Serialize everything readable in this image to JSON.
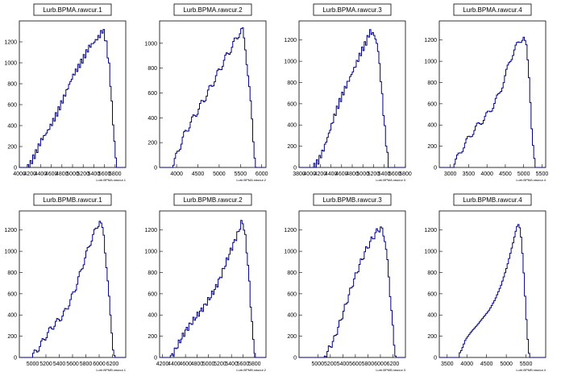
{
  "chart_data": [
    {
      "type": "histogram",
      "title": "Lurb.BPMA.rawcur.1",
      "xlabel": "Lurb.BPMA.rawcur.1",
      "xlim": [
        4000,
        6000
      ],
      "ylim": [
        0,
        1400
      ],
      "xticks": [
        4000,
        4200,
        4400,
        4600,
        4800,
        5000,
        5200,
        5400,
        5600,
        5800
      ],
      "yticks": [
        0,
        200,
        400,
        600,
        800,
        1000,
        1200
      ],
      "points": [
        [
          4000,
          0
        ],
        [
          4140,
          0
        ],
        [
          4200,
          40
        ],
        [
          4300,
          140
        ],
        [
          4400,
          260
        ],
        [
          4500,
          330
        ],
        [
          4600,
          420
        ],
        [
          4700,
          520
        ],
        [
          4800,
          640
        ],
        [
          4900,
          760
        ],
        [
          5000,
          880
        ],
        [
          5100,
          960
        ],
        [
          5200,
          1050
        ],
        [
          5300,
          1150
        ],
        [
          5400,
          1200
        ],
        [
          5500,
          1260
        ],
        [
          5560,
          1320
        ],
        [
          5620,
          1200
        ],
        [
          5680,
          950
        ],
        [
          5740,
          500
        ],
        [
          5780,
          200
        ],
        [
          5820,
          0
        ],
        [
          6000,
          0
        ]
      ]
    },
    {
      "type": "histogram",
      "title": "Lurb.BPMA.rawcur.2",
      "xlabel": "Lurb.BPMA.rawcur.2",
      "xlim": [
        3600,
        6100
      ],
      "ylim": [
        0,
        1180
      ],
      "xticks": [
        4000,
        4500,
        5000,
        5500,
        6000
      ],
      "yticks": [
        0,
        200,
        400,
        600,
        800,
        1000
      ],
      "points": [
        [
          3600,
          0
        ],
        [
          3880,
          0
        ],
        [
          3950,
          60
        ],
        [
          4050,
          160
        ],
        [
          4150,
          250
        ],
        [
          4300,
          350
        ],
        [
          4500,
          470
        ],
        [
          4700,
          590
        ],
        [
          4900,
          720
        ],
        [
          5100,
          860
        ],
        [
          5300,
          980
        ],
        [
          5450,
          1080
        ],
        [
          5530,
          1110
        ],
        [
          5600,
          960
        ],
        [
          5680,
          700
        ],
        [
          5750,
          400
        ],
        [
          5800,
          150
        ],
        [
          5860,
          0
        ],
        [
          6100,
          0
        ]
      ]
    },
    {
      "type": "histogram",
      "title": "Lurb.BPMA.rawcur.3",
      "xlabel": "Lurb.BPMA.rawcur.3",
      "xlim": [
        3800,
        5800
      ],
      "ylim": [
        0,
        1380
      ],
      "xticks": [
        3800,
        4000,
        4200,
        4400,
        4600,
        4800,
        5000,
        5200,
        5400,
        5600,
        5800
      ],
      "yticks": [
        0,
        200,
        400,
        600,
        800,
        1000,
        1200
      ],
      "points": [
        [
          3800,
          0
        ],
        [
          4060,
          0
        ],
        [
          4150,
          60
        ],
        [
          4250,
          170
        ],
        [
          4350,
          320
        ],
        [
          4450,
          480
        ],
        [
          4550,
          620
        ],
        [
          4650,
          740
        ],
        [
          4750,
          850
        ],
        [
          4850,
          960
        ],
        [
          4950,
          1080
        ],
        [
          5050,
          1180
        ],
        [
          5120,
          1280
        ],
        [
          5200,
          1250
        ],
        [
          5270,
          1130
        ],
        [
          5330,
          800
        ],
        [
          5390,
          420
        ],
        [
          5440,
          150
        ],
        [
          5480,
          0
        ],
        [
          5800,
          0
        ]
      ]
    },
    {
      "type": "histogram",
      "title": "Lurb.BPMA.rawcur.4",
      "xlabel": "Lurb.BPMA.rawcur.4",
      "xlim": [
        2700,
        5600
      ],
      "ylim": [
        0,
        1380
      ],
      "xticks": [
        3000,
        3500,
        4000,
        4500,
        5000,
        5500
      ],
      "yticks": [
        0,
        200,
        400,
        600,
        800,
        1000,
        1200
      ],
      "points": [
        [
          2700,
          0
        ],
        [
          3000,
          0
        ],
        [
          3100,
          40
        ],
        [
          3250,
          140
        ],
        [
          3400,
          230
        ],
        [
          3550,
          310
        ],
        [
          3700,
          380
        ],
        [
          3850,
          440
        ],
        [
          4000,
          500
        ],
        [
          4150,
          580
        ],
        [
          4300,
          680
        ],
        [
          4450,
          820
        ],
        [
          4600,
          1000
        ],
        [
          4750,
          1120
        ],
        [
          4900,
          1200
        ],
        [
          4980,
          1240
        ],
        [
          5060,
          1120
        ],
        [
          5140,
          800
        ],
        [
          5200,
          400
        ],
        [
          5260,
          120
        ],
        [
          5300,
          0
        ],
        [
          5600,
          0
        ]
      ]
    },
    {
      "type": "histogram",
      "title": "Lurb.BPMB.rawcur.1",
      "xlabel": "Lurb.BPMB.rawcur.1",
      "xlim": [
        4800,
        6400
      ],
      "ylim": [
        0,
        1380
      ],
      "xticks": [
        5000,
        5200,
        5400,
        5600,
        5800,
        6000,
        6200
      ],
      "yticks": [
        0,
        200,
        400,
        600,
        800,
        1000,
        1200
      ],
      "points": [
        [
          4800,
          0
        ],
        [
          4960,
          0
        ],
        [
          5050,
          60
        ],
        [
          5150,
          160
        ],
        [
          5250,
          260
        ],
        [
          5350,
          330
        ],
        [
          5450,
          400
        ],
        [
          5550,
          520
        ],
        [
          5650,
          680
        ],
        [
          5750,
          880
        ],
        [
          5850,
          1070
        ],
        [
          5950,
          1220
        ],
        [
          6000,
          1290
        ],
        [
          6060,
          1150
        ],
        [
          6110,
          800
        ],
        [
          6160,
          380
        ],
        [
          6200,
          100
        ],
        [
          6230,
          0
        ],
        [
          6400,
          0
        ]
      ]
    },
    {
      "type": "histogram",
      "title": "Lurb.BPMB.rawcur.2",
      "xlabel": "Lurb.BPMB.rawcur.2",
      "xlim": [
        4150,
        6000
      ],
      "ylim": [
        0,
        1380
      ],
      "xticks": [
        4200,
        4400,
        4600,
        4800,
        5000,
        5200,
        5400,
        5600,
        5800
      ],
      "yticks": [
        0,
        200,
        400,
        600,
        800,
        1000,
        1200
      ],
      "points": [
        [
          4150,
          0
        ],
        [
          4330,
          0
        ],
        [
          4400,
          60
        ],
        [
          4500,
          160
        ],
        [
          4600,
          260
        ],
        [
          4700,
          330
        ],
        [
          4800,
          400
        ],
        [
          4900,
          470
        ],
        [
          5000,
          550
        ],
        [
          5100,
          640
        ],
        [
          5200,
          760
        ],
        [
          5300,
          900
        ],
        [
          5400,
          1040
        ],
        [
          5500,
          1170
        ],
        [
          5580,
          1290
        ],
        [
          5640,
          1100
        ],
        [
          5700,
          700
        ],
        [
          5740,
          350
        ],
        [
          5780,
          100
        ],
        [
          5810,
          0
        ],
        [
          6000,
          0
        ]
      ]
    },
    {
      "type": "histogram",
      "title": "Lurb.BPMB.rawcur.3",
      "xlabel": "Lurb.BPMB.rawcur.3",
      "xlim": [
        4700,
        6400
      ],
      "ylim": [
        0,
        1380
      ],
      "xticks": [
        5000,
        5200,
        5400,
        5600,
        5800,
        6000,
        6200
      ],
      "yticks": [
        0,
        200,
        400,
        600,
        800,
        1000,
        1200
      ],
      "points": [
        [
          4700,
          0
        ],
        [
          5090,
          0
        ],
        [
          5150,
          60
        ],
        [
          5250,
          170
        ],
        [
          5350,
          340
        ],
        [
          5450,
          520
        ],
        [
          5550,
          700
        ],
        [
          5650,
          860
        ],
        [
          5750,
          1000
        ],
        [
          5850,
          1110
        ],
        [
          5950,
          1200
        ],
        [
          6000,
          1220
        ],
        [
          6060,
          1120
        ],
        [
          6120,
          800
        ],
        [
          6170,
          400
        ],
        [
          6210,
          120
        ],
        [
          6240,
          0
        ],
        [
          6400,
          0
        ]
      ]
    },
    {
      "type": "histogram",
      "title": "Lurb.BPMB.rawcur.4",
      "xlabel": "Lurb.BPMB.rawcur.4",
      "xlim": [
        3300,
        6000
      ],
      "ylim": [
        0,
        1380
      ],
      "xticks": [
        3500,
        4000,
        4500,
        5000,
        5500
      ],
      "yticks": [
        0,
        200,
        400,
        600,
        800,
        1000,
        1200
      ],
      "points": [
        [
          3300,
          0
        ],
        [
          3780,
          0
        ],
        [
          3850,
          40
        ],
        [
          3950,
          140
        ],
        [
          4100,
          220
        ],
        [
          4250,
          290
        ],
        [
          4400,
          370
        ],
        [
          4550,
          450
        ],
        [
          4700,
          560
        ],
        [
          4850,
          700
        ],
        [
          5000,
          880
        ],
        [
          5150,
          1100
        ],
        [
          5250,
          1260
        ],
        [
          5310,
          1290
        ],
        [
          5370,
          1130
        ],
        [
          5430,
          800
        ],
        [
          5490,
          400
        ],
        [
          5540,
          120
        ],
        [
          5580,
          0
        ],
        [
          6000,
          0
        ]
      ]
    }
  ]
}
